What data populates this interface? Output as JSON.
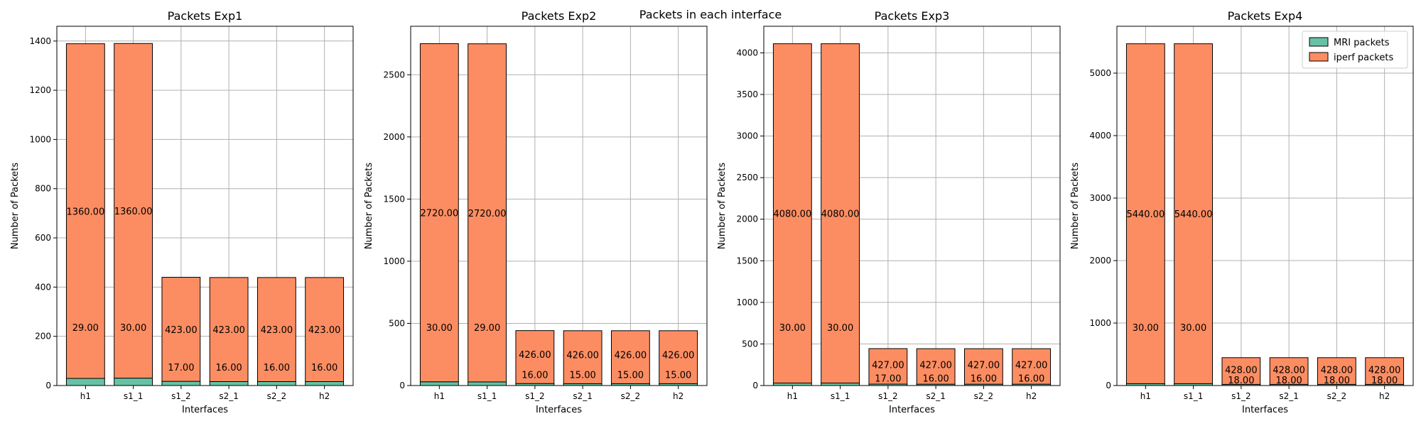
{
  "figure": {
    "suptitle": "Packets in each interface"
  },
  "colors": {
    "mri": "#66c2a5",
    "iperf": "#fc8d62",
    "grid": "#b0b0b0",
    "edge": "#000000"
  },
  "chart_data": [
    {
      "type": "bar",
      "stacked": true,
      "title": "Packets Exp1",
      "xlabel": "Interfaces",
      "ylabel": "Number of Packets",
      "categories": [
        "h1",
        "s1_1",
        "s1_2",
        "s2_1",
        "s2_2",
        "h2"
      ],
      "ylim": [
        0,
        1460
      ],
      "yticks": [
        0,
        200,
        400,
        600,
        800,
        1000,
        1200,
        1400
      ],
      "grid": true,
      "series": [
        {
          "name": "MRI packets",
          "values": [
            29,
            30,
            17,
            16,
            16,
            16
          ],
          "labels": [
            "29.00",
            "30.00",
            "17.00",
            "16.00",
            "16.00",
            "16.00"
          ]
        },
        {
          "name": "iperf packets",
          "values": [
            1360,
            1360,
            423,
            423,
            423,
            423
          ],
          "labels": [
            "1360.00",
            "1360.00",
            "423.00",
            "423.00",
            "423.00",
            "423.00"
          ]
        }
      ]
    },
    {
      "type": "bar",
      "stacked": true,
      "title": "Packets Exp2",
      "xlabel": "Interfaces",
      "ylabel": "Number of Packets",
      "categories": [
        "h1",
        "s1_1",
        "s1_2",
        "s2_1",
        "s2_2",
        "h2"
      ],
      "ylim": [
        0,
        2890
      ],
      "yticks": [
        0,
        500,
        1000,
        1500,
        2000,
        2500
      ],
      "grid": true,
      "series": [
        {
          "name": "MRI packets",
          "values": [
            30,
            29,
            16,
            15,
            15,
            15
          ],
          "labels": [
            "30.00",
            "29.00",
            "16.00",
            "15.00",
            "15.00",
            "15.00"
          ]
        },
        {
          "name": "iperf packets",
          "values": [
            2720,
            2720,
            426,
            426,
            426,
            426
          ],
          "labels": [
            "2720.00",
            "2720.00",
            "426.00",
            "426.00",
            "426.00",
            "426.00"
          ]
        }
      ]
    },
    {
      "type": "bar",
      "stacked": true,
      "title": "Packets Exp3",
      "xlabel": "Interfaces",
      "ylabel": "Number of Packets",
      "categories": [
        "h1",
        "s1_1",
        "s1_2",
        "s2_1",
        "s2_2",
        "h2"
      ],
      "ylim": [
        0,
        4320
      ],
      "yticks": [
        0,
        500,
        1000,
        1500,
        2000,
        2500,
        3000,
        3500,
        4000
      ],
      "grid": true,
      "series": [
        {
          "name": "MRI packets",
          "values": [
            30,
            30,
            17,
            16,
            16,
            16
          ],
          "labels": [
            "30.00",
            "30.00",
            "17.00",
            "16.00",
            "16.00",
            "16.00"
          ]
        },
        {
          "name": "iperf packets",
          "values": [
            4080,
            4080,
            427,
            427,
            427,
            427
          ],
          "labels": [
            "4080.00",
            "4080.00",
            "427.00",
            "427.00",
            "427.00",
            "427.00"
          ]
        }
      ]
    },
    {
      "type": "bar",
      "stacked": true,
      "title": "Packets Exp4",
      "xlabel": "Interfaces",
      "ylabel": "Number of Packets",
      "categories": [
        "h1",
        "s1_1",
        "s1_2",
        "s2_1",
        "s2_2",
        "h2"
      ],
      "ylim": [
        0,
        5750
      ],
      "yticks": [
        0,
        1000,
        2000,
        3000,
        4000,
        5000
      ],
      "grid": true,
      "legend": "top-right",
      "series": [
        {
          "name": "MRI packets",
          "values": [
            30,
            30,
            18,
            18,
            18,
            18
          ],
          "labels": [
            "30.00",
            "30.00",
            "18.00",
            "18.00",
            "18.00",
            "18.00"
          ]
        },
        {
          "name": "iperf packets",
          "values": [
            5440,
            5440,
            428,
            428,
            428,
            428
          ],
          "labels": [
            "5440.00",
            "5440.00",
            "428.00",
            "428.00",
            "428.00",
            "428.00"
          ]
        }
      ]
    }
  ]
}
